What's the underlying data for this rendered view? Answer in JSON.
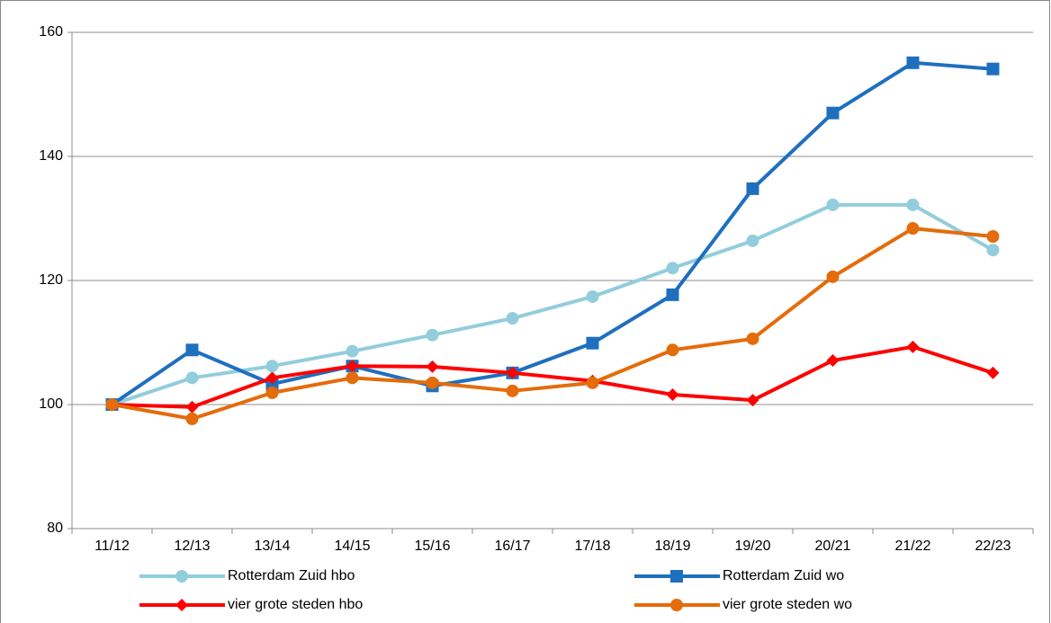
{
  "chart_data": {
    "type": "line",
    "categories": [
      "11/12",
      "12/13",
      "13/14",
      "14/15",
      "15/16",
      "16/17",
      "17/18",
      "18/19",
      "19/20",
      "20/21",
      "21/22",
      "22/23"
    ],
    "series": [
      {
        "name": "Rotterdam Zuid hbo",
        "color": "#92cddc",
        "marker": "circle",
        "values": [
          100,
          104.3,
          106.2,
          108.6,
          111.2,
          113.9,
          117.4,
          122.0,
          126.4,
          132.2,
          132.2,
          124.9
        ]
      },
      {
        "name": "Rotterdam Zuid wo",
        "color": "#1f6fbf",
        "marker": "square",
        "values": [
          100,
          108.8,
          103.3,
          106.2,
          103.0,
          105.1,
          109.9,
          117.7,
          134.8,
          147.0,
          155.1,
          154.1
        ]
      },
      {
        "name": "vier grote steden hbo",
        "color": "#ff0000",
        "marker": "diamond",
        "values": [
          100,
          99.6,
          104.3,
          106.2,
          106.1,
          105.1,
          103.8,
          101.6,
          100.7,
          107.1,
          109.3,
          105.1
        ]
      },
      {
        "name": "vier grote steden wo",
        "color": "#e46c0a",
        "marker": "circle",
        "values": [
          100,
          97.7,
          101.9,
          104.3,
          103.5,
          102.2,
          103.5,
          108.8,
          110.6,
          120.6,
          128.4,
          127.1
        ]
      }
    ],
    "ylim": [
      80,
      160
    ],
    "yticks": [
      80,
      100,
      120,
      140,
      160
    ],
    "grid": true
  }
}
